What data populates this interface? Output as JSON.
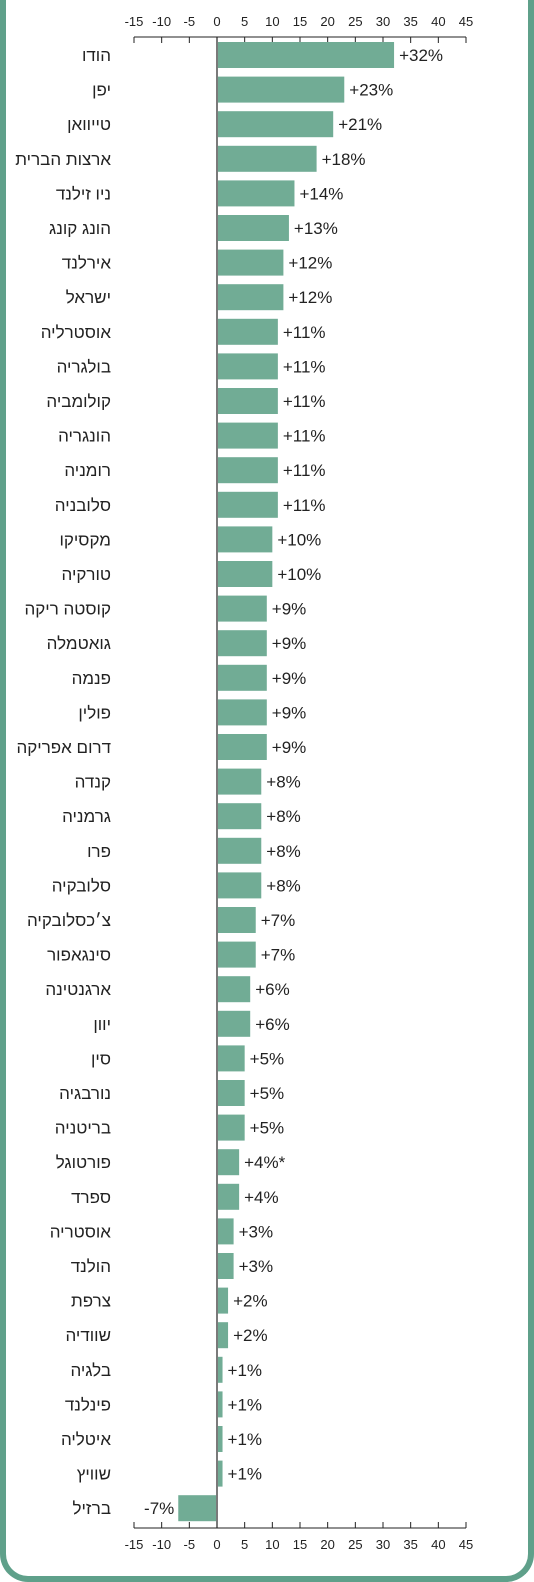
{
  "chart_data": {
    "type": "bar",
    "orientation": "horizontal",
    "categories": [
      "הודו",
      "יפן",
      "טייוואן",
      "ארצות הברית",
      "ניו זילנד",
      "הונג קונג",
      "אירלנד",
      "ישראל",
      "אוסטרליה",
      "בולגריה",
      "קולומביה",
      "הונגריה",
      "רומניה",
      "סלובניה",
      "מקסיקו",
      "טורקיה",
      "קוסטה ריקה",
      "גואטמלה",
      "פנמה",
      "פולין",
      "דרום אפריקה",
      "קנדה",
      "גרמניה",
      "פרו",
      "סלובקיה",
      "צ׳כסלובקיה",
      "סינגאפור",
      "ארגנטינה",
      "יוון",
      "סין",
      "נורבגיה",
      "בריטניה",
      "פורטוגל",
      "ספרד",
      "אוסטריה",
      "הולנד",
      "צרפת",
      "שוודיה",
      "בלגיה",
      "פינלנד",
      "איטליה",
      "שוויץ",
      "ברזיל"
    ],
    "values": [
      32,
      23,
      21,
      18,
      14,
      13,
      12,
      12,
      11,
      11,
      11,
      11,
      11,
      11,
      10,
      10,
      9,
      9,
      9,
      9,
      9,
      8,
      8,
      8,
      8,
      7,
      7,
      6,
      6,
      5,
      5,
      5,
      4,
      4,
      3,
      3,
      2,
      2,
      1,
      1,
      1,
      1,
      -7
    ],
    "value_labels": [
      "+32%",
      "+23%",
      "+21%",
      "+18%",
      "+14%",
      "+13%",
      "+12%",
      "+12%",
      "+11%",
      "+11%",
      "+11%",
      "+11%",
      "+11%",
      "+11%",
      "+10%",
      "+10%",
      "+9%",
      "+9%",
      "+9%",
      "+9%",
      "+9%",
      "+8%",
      "+8%",
      "+8%",
      "+8%",
      "+7%",
      "+7%",
      "+6%",
      "+6%",
      "+5%",
      "+5%",
      "+5%",
      "+4%*",
      "+4%",
      "+3%",
      "+3%",
      "+2%",
      "+2%",
      "+1%",
      "+1%",
      "+1%",
      "+1%",
      "-7%"
    ],
    "x_ticks": [
      -15,
      -10,
      -5,
      0,
      5,
      10,
      15,
      20,
      25,
      30,
      35,
      40,
      45
    ],
    "xlim": [
      -15,
      45
    ],
    "axis_position": [
      "top",
      "bottom"
    ],
    "grid": false,
    "colors": {
      "bar": "#71ac95",
      "frame": "#5fa08a",
      "axis": "#222222",
      "text": "#222222"
    }
  }
}
